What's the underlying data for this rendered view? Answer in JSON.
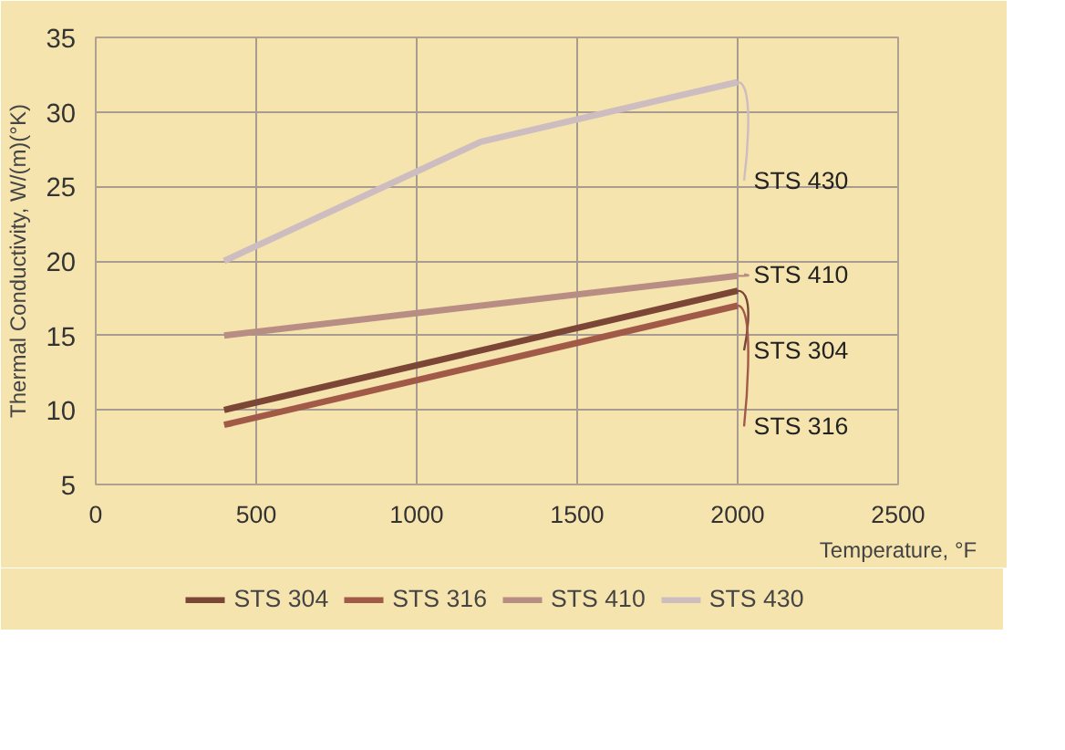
{
  "chart_data": {
    "type": "line",
    "xlabel": "Temperature, °F",
    "ylabel": "Thermal Conductivity, W/(m)(°K)",
    "xlim": [
      0,
      2500
    ],
    "xticks": [
      0,
      500,
      1000,
      1500,
      2000,
      2500
    ],
    "ylim": [
      5,
      35
    ],
    "yticks": [
      5,
      10,
      15,
      20,
      25,
      30,
      35
    ],
    "grid": true,
    "legend": "bottom",
    "marker": "none",
    "line_style": "solid",
    "series": [
      {
        "name": "STS 304",
        "color": "#7b4636",
        "x": [
          400,
          2000
        ],
        "values": [
          10,
          18
        ]
      },
      {
        "name": "STS 316",
        "color": "#a25a48",
        "x": [
          400,
          2000
        ],
        "values": [
          9,
          17
        ]
      },
      {
        "name": "STS 410",
        "color": "#b88e84",
        "x": [
          400,
          2000
        ],
        "values": [
          15,
          19
        ]
      },
      {
        "name": "STS 430",
        "color": "#cdbcc0",
        "x": [
          400,
          1200,
          2000
        ],
        "values": [
          20,
          28,
          32
        ]
      }
    ]
  }
}
